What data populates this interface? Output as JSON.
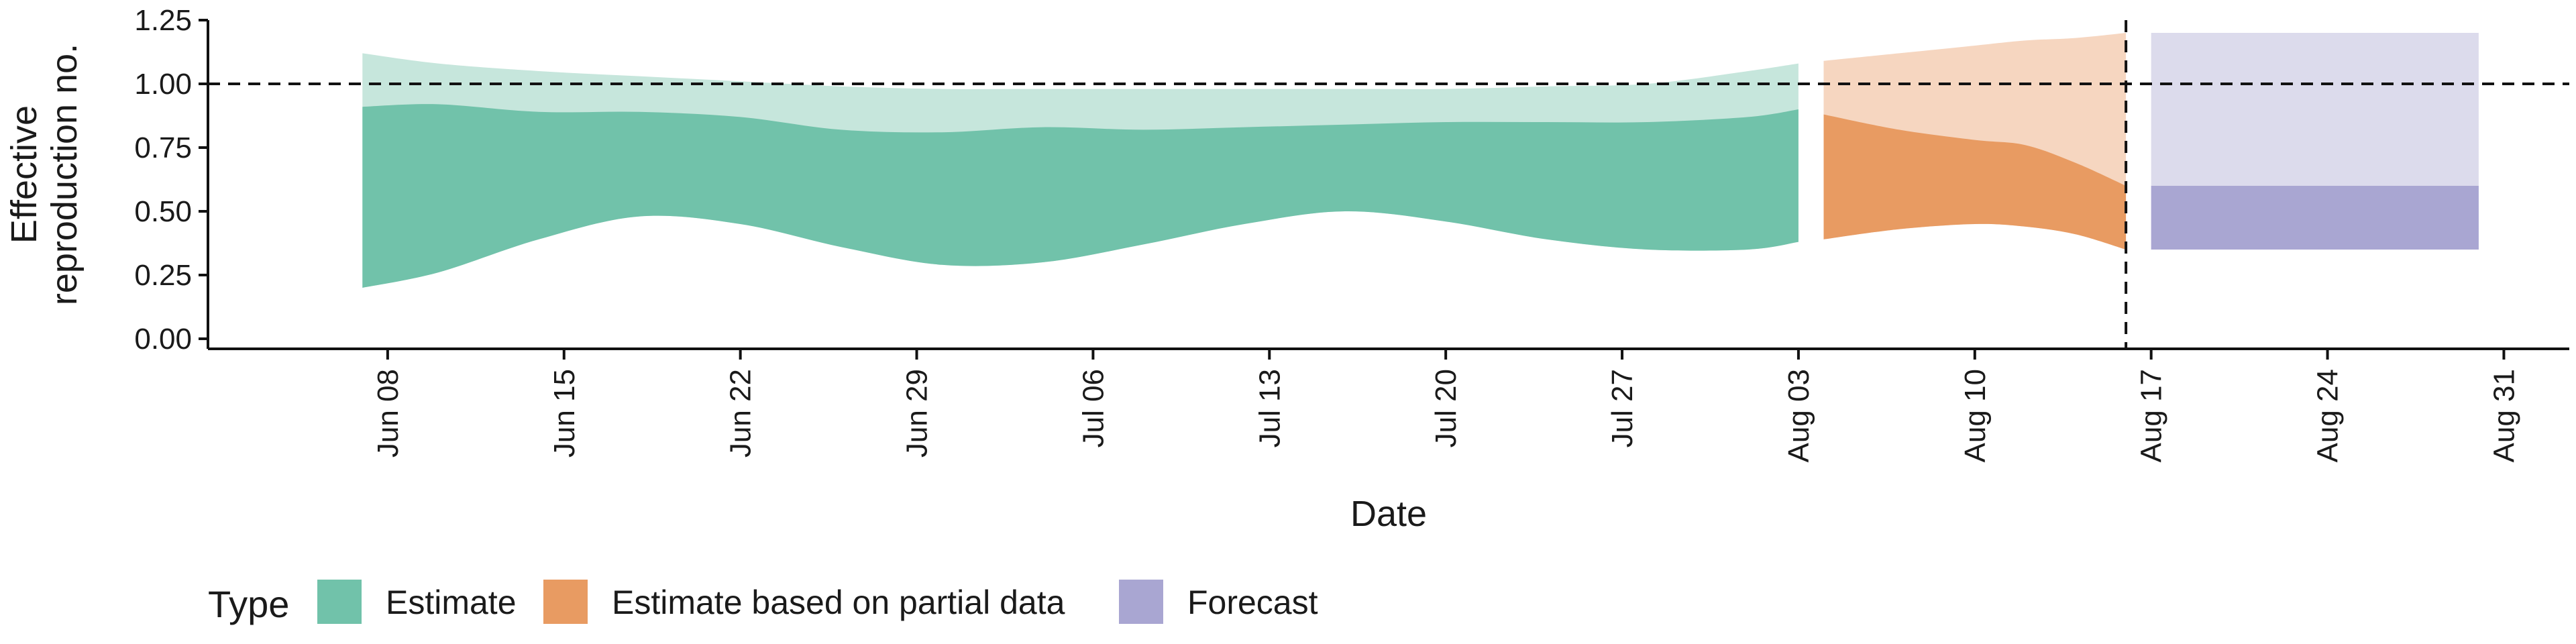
{
  "chart_data": {
    "type": "area",
    "xlabel": "Date",
    "ylabel_lines": [
      "Effective",
      "reproduction no."
    ],
    "ylim": [
      0,
      1.25
    ],
    "y_ticks": [
      0,
      0.25,
      0.5,
      0.75,
      1.0,
      1.25
    ],
    "y_tick_labels": [
      "0.00",
      "0.25",
      "0.50",
      "0.75",
      "1.00",
      "1.25"
    ],
    "x_range": [
      "2020-06-01",
      "2020-09-01"
    ],
    "x_ticks": [
      "2020-06-08",
      "2020-06-15",
      "2020-06-22",
      "2020-06-29",
      "2020-07-06",
      "2020-07-13",
      "2020-07-20",
      "2020-07-27",
      "2020-08-03",
      "2020-08-10",
      "2020-08-17",
      "2020-08-24",
      "2020-08-31"
    ],
    "x_tick_labels": [
      "Jun 08",
      "Jun 15",
      "Jun 22",
      "Jun 29",
      "Jul 06",
      "Jul 13",
      "Jul 20",
      "Jul 27",
      "Aug 03",
      "Aug 10",
      "Aug 17",
      "Aug 24",
      "Aug 31"
    ],
    "reference_line_y": 1.0,
    "vertical_line_x": "2020-08-16",
    "grid": false,
    "legend": {
      "title": "Type",
      "position": "bottom-left",
      "items": [
        "Estimate",
        "Estimate based on partial data",
        "Forecast"
      ]
    },
    "series": [
      {
        "name": "Estimate",
        "color_dark": "#71c2aa",
        "color_light": "#c6e6dc",
        "x": [
          "2020-06-07",
          "2020-06-10",
          "2020-06-14",
          "2020-06-18",
          "2020-06-22",
          "2020-06-26",
          "2020-06-30",
          "2020-07-04",
          "2020-07-08",
          "2020-07-12",
          "2020-07-16",
          "2020-07-20",
          "2020-07-24",
          "2020-07-28",
          "2020-08-01",
          "2020-08-03"
        ],
        "outer_lower": [
          0.2,
          0.26,
          0.39,
          0.48,
          0.45,
          0.36,
          0.29,
          0.3,
          0.37,
          0.45,
          0.5,
          0.46,
          0.39,
          0.35,
          0.35,
          0.38
        ],
        "inner_upper": [
          0.91,
          0.92,
          0.89,
          0.89,
          0.87,
          0.82,
          0.81,
          0.83,
          0.82,
          0.83,
          0.84,
          0.85,
          0.85,
          0.85,
          0.87,
          0.9
        ],
        "outer_upper": [
          1.12,
          1.08,
          1.05,
          1.03,
          1.01,
          0.99,
          0.98,
          0.98,
          0.98,
          0.98,
          0.98,
          0.98,
          0.99,
          1.0,
          1.05,
          1.08
        ]
      },
      {
        "name": "Estimate based on partial data",
        "color_dark": "#e89b62",
        "color_light": "#f6d6c0",
        "x": [
          "2020-08-04",
          "2020-08-07",
          "2020-08-10",
          "2020-08-12",
          "2020-08-14",
          "2020-08-16"
        ],
        "outer_lower": [
          0.39,
          0.43,
          0.45,
          0.44,
          0.41,
          0.35
        ],
        "inner_upper": [
          0.88,
          0.82,
          0.78,
          0.76,
          0.69,
          0.6
        ],
        "outer_upper": [
          1.09,
          1.12,
          1.15,
          1.17,
          1.18,
          1.2
        ]
      },
      {
        "name": "Forecast",
        "color_dark": "#a9a6d2",
        "color_light": "#dcdbec",
        "x": [
          "2020-08-17",
          "2020-08-30"
        ],
        "outer_lower": [
          0.35,
          0.35
        ],
        "inner_upper": [
          0.6,
          0.6
        ],
        "outer_upper": [
          1.2,
          1.2
        ]
      }
    ]
  }
}
